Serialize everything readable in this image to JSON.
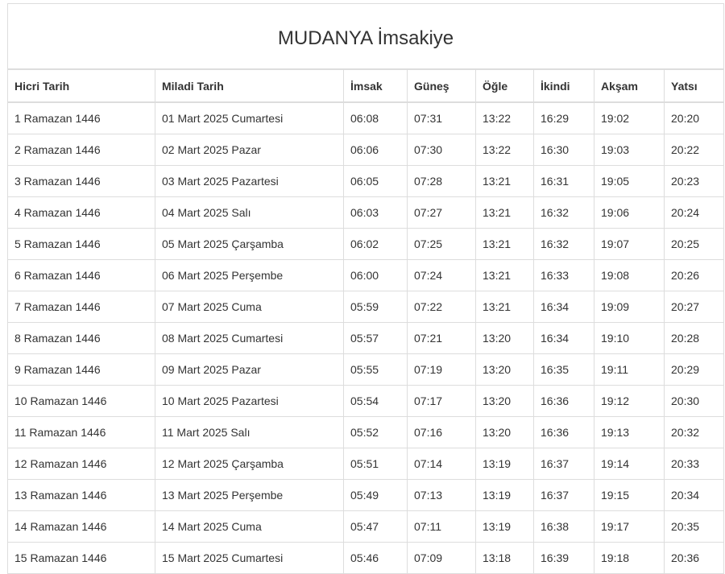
{
  "title": "MUDANYA İmsakiye",
  "columns": [
    "Hicri Tarih",
    "Miladi Tarih",
    "İmsak",
    "Güneş",
    "Öğle",
    "İkindi",
    "Akşam",
    "Yatsı"
  ],
  "rows": [
    [
      "1 Ramazan 1446",
      "01 Mart 2025 Cumartesi",
      "06:08",
      "07:31",
      "13:22",
      "16:29",
      "19:02",
      "20:20"
    ],
    [
      "2 Ramazan 1446",
      "02 Mart 2025 Pazar",
      "06:06",
      "07:30",
      "13:22",
      "16:30",
      "19:03",
      "20:22"
    ],
    [
      "3 Ramazan 1446",
      "03 Mart 2025 Pazartesi",
      "06:05",
      "07:28",
      "13:21",
      "16:31",
      "19:05",
      "20:23"
    ],
    [
      "4 Ramazan 1446",
      "04 Mart 2025 Salı",
      "06:03",
      "07:27",
      "13:21",
      "16:32",
      "19:06",
      "20:24"
    ],
    [
      "5 Ramazan 1446",
      "05 Mart 2025 Çarşamba",
      "06:02",
      "07:25",
      "13:21",
      "16:32",
      "19:07",
      "20:25"
    ],
    [
      "6 Ramazan 1446",
      "06 Mart 2025 Perşembe",
      "06:00",
      "07:24",
      "13:21",
      "16:33",
      "19:08",
      "20:26"
    ],
    [
      "7 Ramazan 1446",
      "07 Mart 2025 Cuma",
      "05:59",
      "07:22",
      "13:21",
      "16:34",
      "19:09",
      "20:27"
    ],
    [
      "8 Ramazan 1446",
      "08 Mart 2025 Cumartesi",
      "05:57",
      "07:21",
      "13:20",
      "16:34",
      "19:10",
      "20:28"
    ],
    [
      "9 Ramazan 1446",
      "09 Mart 2025 Pazar",
      "05:55",
      "07:19",
      "13:20",
      "16:35",
      "19:11",
      "20:29"
    ],
    [
      "10 Ramazan 1446",
      "10 Mart 2025 Pazartesi",
      "05:54",
      "07:17",
      "13:20",
      "16:36",
      "19:12",
      "20:30"
    ],
    [
      "11 Ramazan 1446",
      "11 Mart 2025 Salı",
      "05:52",
      "07:16",
      "13:20",
      "16:36",
      "19:13",
      "20:32"
    ],
    [
      "12 Ramazan 1446",
      "12 Mart 2025 Çarşamba",
      "05:51",
      "07:14",
      "13:19",
      "16:37",
      "19:14",
      "20:33"
    ],
    [
      "13 Ramazan 1446",
      "13 Mart 2025 Perşembe",
      "05:49",
      "07:13",
      "13:19",
      "16:37",
      "19:15",
      "20:34"
    ],
    [
      "14 Ramazan 1446",
      "14 Mart 2025 Cuma",
      "05:47",
      "07:11",
      "13:19",
      "16:38",
      "19:17",
      "20:35"
    ],
    [
      "15 Ramazan 1446",
      "15 Mart 2025 Cumartesi",
      "05:46",
      "07:09",
      "13:18",
      "16:39",
      "19:18",
      "20:36"
    ]
  ]
}
